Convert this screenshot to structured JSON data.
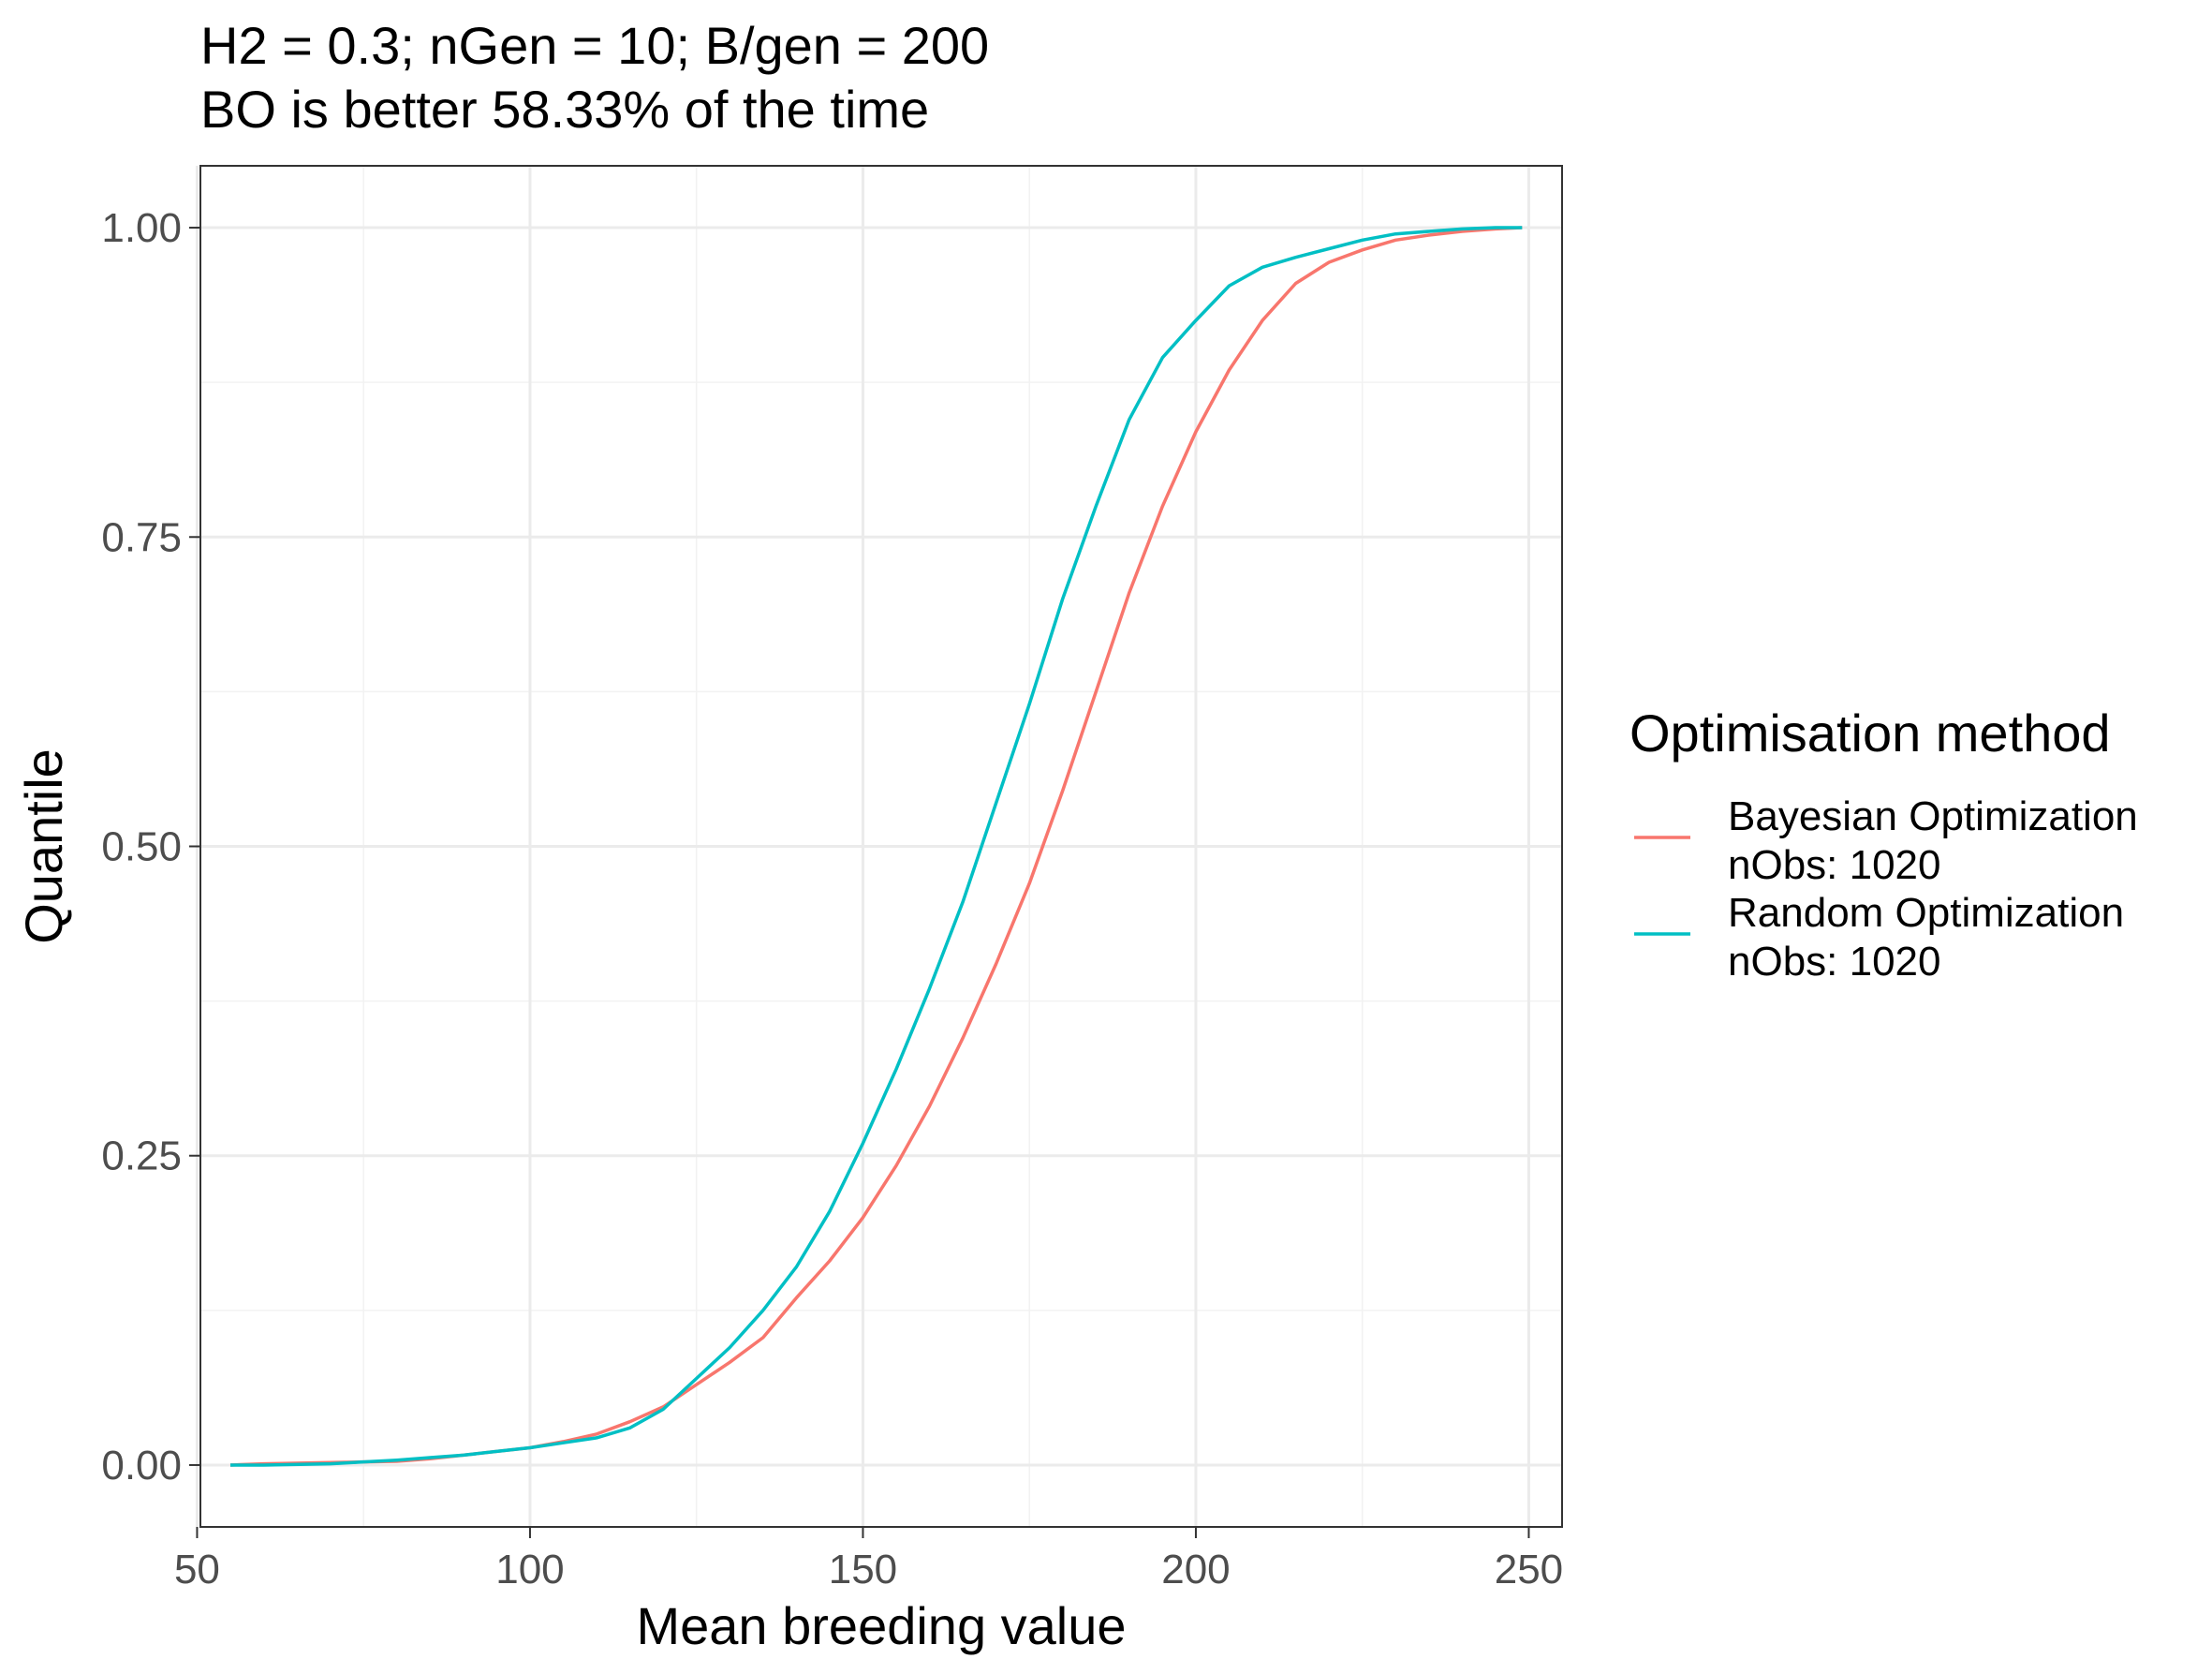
{
  "chart_data": {
    "type": "line",
    "title": "H2 = 0.3; nGen = 10; B/gen = 200",
    "subtitle": "BO is better 58.33% of the time",
    "xlabel": "Mean breeding value",
    "ylabel": "Quantile",
    "xlim": [
      50.5,
      255
    ],
    "ylim": [
      -0.05,
      1.05
    ],
    "x_ticks": [
      50,
      100,
      150,
      200,
      250
    ],
    "x_tick_labels": [
      "50",
      "100",
      "150",
      "200",
      "250"
    ],
    "y_ticks": [
      0,
      0.25,
      0.5,
      0.75,
      1.0
    ],
    "y_tick_labels": [
      "0.00",
      "0.25",
      "0.50",
      "0.75",
      "1.00"
    ],
    "grid": true,
    "legend": {
      "title": "Optimisation method",
      "position": "right"
    },
    "series": [
      {
        "name": "Bayesian Optimization\nnObs: 1020",
        "color": "#F8766D",
        "points": [
          [
            55,
            0.0
          ],
          [
            60,
            0.001
          ],
          [
            70,
            0.002
          ],
          [
            80,
            0.003
          ],
          [
            85,
            0.005
          ],
          [
            90,
            0.008
          ],
          [
            95,
            0.011
          ],
          [
            100,
            0.014
          ],
          [
            105,
            0.019
          ],
          [
            110,
            0.025
          ],
          [
            115,
            0.035
          ],
          [
            120,
            0.047
          ],
          [
            125,
            0.065
          ],
          [
            130,
            0.083
          ],
          [
            135,
            0.103
          ],
          [
            140,
            0.135
          ],
          [
            145,
            0.165
          ],
          [
            150,
            0.2
          ],
          [
            155,
            0.242
          ],
          [
            160,
            0.29
          ],
          [
            165,
            0.345
          ],
          [
            170,
            0.405
          ],
          [
            175,
            0.47
          ],
          [
            180,
            0.545
          ],
          [
            185,
            0.625
          ],
          [
            190,
            0.705
          ],
          [
            195,
            0.775
          ],
          [
            200,
            0.835
          ],
          [
            205,
            0.885
          ],
          [
            210,
            0.925
          ],
          [
            215,
            0.955
          ],
          [
            220,
            0.972
          ],
          [
            225,
            0.982
          ],
          [
            230,
            0.99
          ],
          [
            235,
            0.994
          ],
          [
            240,
            0.997
          ],
          [
            245,
            0.999
          ],
          [
            249,
            1.0
          ]
        ]
      },
      {
        "name": "Random Optimization\nnObs: 1020",
        "color": "#00BFC4",
        "points": [
          [
            55,
            0.0
          ],
          [
            60,
            0.0
          ],
          [
            70,
            0.001
          ],
          [
            80,
            0.004
          ],
          [
            85,
            0.006
          ],
          [
            90,
            0.008
          ],
          [
            95,
            0.011
          ],
          [
            100,
            0.014
          ],
          [
            105,
            0.018
          ],
          [
            110,
            0.022
          ],
          [
            115,
            0.03
          ],
          [
            120,
            0.045
          ],
          [
            125,
            0.07
          ],
          [
            130,
            0.095
          ],
          [
            135,
            0.125
          ],
          [
            140,
            0.16
          ],
          [
            145,
            0.205
          ],
          [
            150,
            0.26
          ],
          [
            155,
            0.32
          ],
          [
            160,
            0.385
          ],
          [
            165,
            0.455
          ],
          [
            170,
            0.535
          ],
          [
            175,
            0.615
          ],
          [
            180,
            0.7
          ],
          [
            185,
            0.775
          ],
          [
            190,
            0.845
          ],
          [
            195,
            0.895
          ],
          [
            200,
            0.925
          ],
          [
            205,
            0.953
          ],
          [
            210,
            0.968
          ],
          [
            215,
            0.976
          ],
          [
            220,
            0.983
          ],
          [
            225,
            0.99
          ],
          [
            230,
            0.995
          ],
          [
            235,
            0.997
          ],
          [
            240,
            0.999
          ],
          [
            245,
            1.0
          ],
          [
            249,
            1.0
          ]
        ]
      }
    ]
  }
}
